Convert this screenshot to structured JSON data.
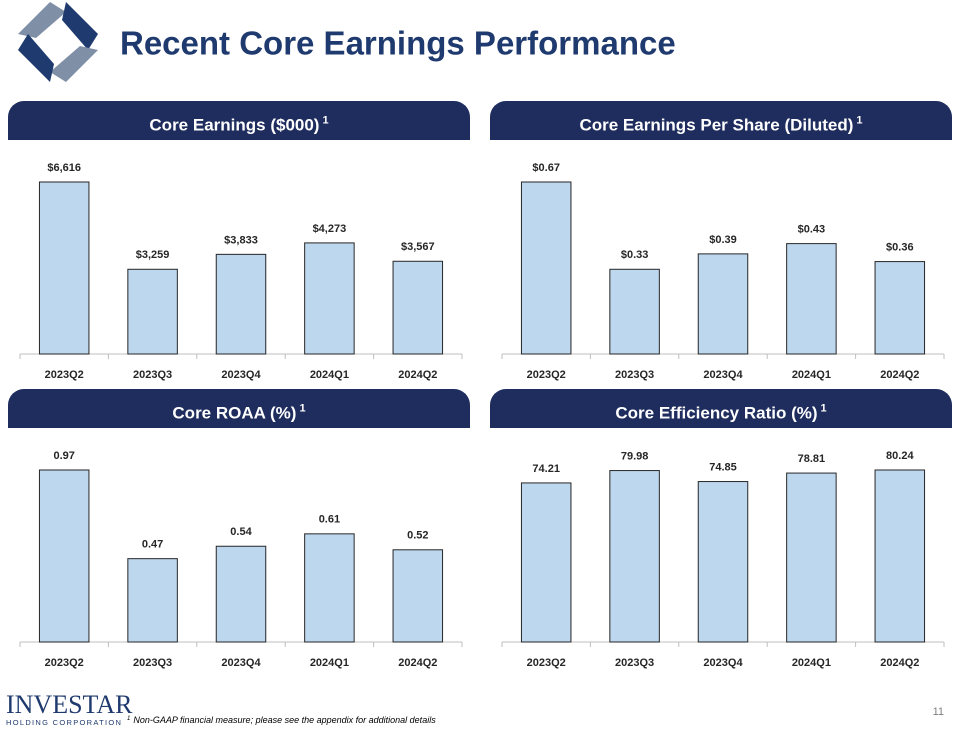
{
  "title": "Recent Core Earnings Performance",
  "chart_data": [
    {
      "type": "bar",
      "title": "Core Earnings ($000)",
      "title_superscript": "1",
      "categories": [
        "2023Q2",
        "2023Q3",
        "2023Q4",
        "2024Q1",
        "2024Q2"
      ],
      "values": [
        6616,
        3259,
        3833,
        4273,
        3567
      ],
      "value_labels": [
        "$6,616",
        "$3,259",
        "$3,833",
        "$4,273",
        "$3,567"
      ],
      "color": "#bdd7ee"
    },
    {
      "type": "bar",
      "title": "Core Earnings Per Share (Diluted)",
      "title_superscript": "1",
      "categories": [
        "2023Q2",
        "2023Q3",
        "2023Q4",
        "2024Q1",
        "2024Q2"
      ],
      "values": [
        0.67,
        0.33,
        0.39,
        0.43,
        0.36
      ],
      "value_labels": [
        "$0.67",
        "$0.33",
        "$0.39",
        "$0.43",
        "$0.36"
      ],
      "color": "#bdd7ee"
    },
    {
      "type": "bar",
      "title": "Core ROAA (%)",
      "title_superscript": "1",
      "categories": [
        "2023Q2",
        "2023Q3",
        "2023Q4",
        "2024Q1",
        "2024Q2"
      ],
      "values": [
        0.97,
        0.47,
        0.54,
        0.61,
        0.52
      ],
      "color": "#bdd7ee"
    },
    {
      "type": "bar",
      "title": "Core Efficiency Ratio (%)",
      "title_superscript": "1",
      "categories": [
        "2023Q2",
        "2023Q3",
        "2023Q4",
        "2024Q1",
        "2024Q2"
      ],
      "values": [
        74.21,
        79.98,
        74.85,
        78.81,
        80.24
      ],
      "color": "#bdd7ee"
    }
  ],
  "logo": {
    "name": "INVESTAR",
    "subtitle": "HOLDING CORPORATION"
  },
  "footnote": {
    "marker": "1",
    "text": "Non-GAAP financial measure; please see the appendix for additional details"
  },
  "page_number": "11"
}
